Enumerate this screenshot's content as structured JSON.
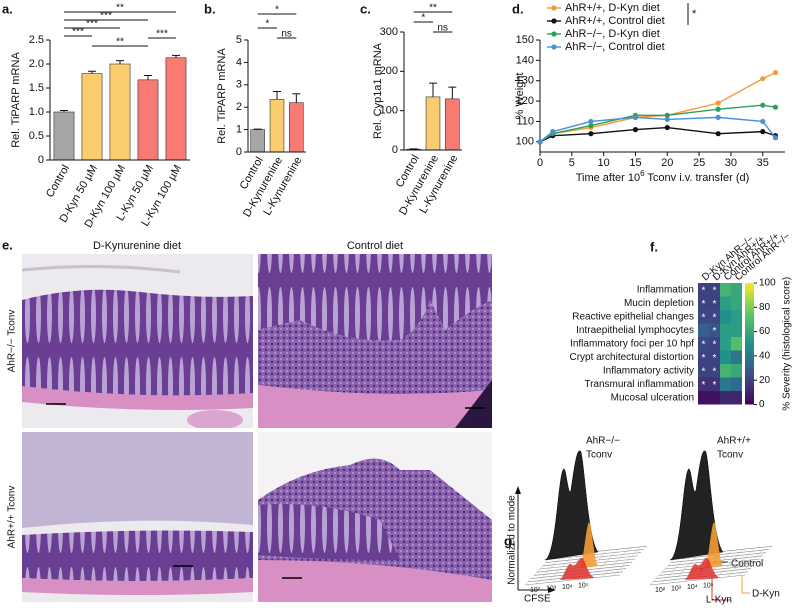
{
  "panel_labels": [
    "a.",
    "b.",
    "c.",
    "d.",
    "e.",
    "f.",
    "g."
  ],
  "chart_data": [
    {
      "type": "bar",
      "ylabel": "Rel. TiPARP mRNA",
      "categories": [
        "Control",
        "D-Kyn 50 µM",
        "D-Kyn 100 µM",
        "L-Kyn 50 µM",
        "L-Kyn 100 µM"
      ],
      "values": [
        1,
        1.8,
        2.0,
        1.67,
        2.13
      ],
      "errors": [
        0.03,
        0.05,
        0.07,
        0.09,
        0.05
      ],
      "colors": [
        "#a6a6a6",
        "#f9cd6e",
        "#f9cd6e",
        "#f77b72",
        "#f77b72"
      ],
      "ylim": [
        0,
        2.5
      ],
      "yticks": [
        0,
        0.5,
        {
          "value": 1,
          "label": "1.0"
        },
        1.5,
        {
          "value": 2,
          "label": "2.0"
        },
        2.5
      ],
      "annotations": [
        "**",
        "***",
        "***",
        "***",
        "**",
        "***"
      ]
    },
    {
      "type": "bar",
      "ylabel": "Rel. TiPARP mRNA",
      "categories": [
        "Control",
        "D-Kynurenine",
        "L-Kynurenine"
      ],
      "values": [
        1,
        2.35,
        2.2
      ],
      "errors": [
        0.02,
        0.35,
        0.4
      ],
      "colors": [
        "#a6a6a6",
        "#f9cd6e",
        "#f77b72"
      ],
      "ylim": [
        0,
        5
      ],
      "yticks": [
        0,
        1,
        2,
        3,
        4,
        5
      ],
      "annotations": [
        "*",
        "*",
        "ns"
      ]
    },
    {
      "type": "bar",
      "ylabel": "Rel. Cyp1a1 mRNA",
      "categories": [
        "Control",
        "D-Kynurenine",
        "L-Kynurenine"
      ],
      "values": [
        2,
        135,
        130
      ],
      "errors": [
        1,
        35,
        30
      ],
      "colors": [
        "#a6a6a6",
        "#f9cd6e",
        "#f77b72"
      ],
      "ylim": [
        0,
        300
      ],
      "yticks": [
        0,
        100,
        200,
        300
      ],
      "annotations": [
        "**",
        "*",
        "ns"
      ]
    },
    {
      "type": "line",
      "ylabel": "% Weight",
      "xlabel": [
        "Time after 10",
        "6",
        " Tconv i.v. transfer (d)"
      ],
      "x": [
        0,
        2,
        8,
        15,
        20,
        28,
        35,
        37
      ],
      "series": [
        {
          "name": "AhR+/+, D-Kyn diet",
          "color": "#f39c34",
          "values": [
            100,
            104,
            107,
            112,
            113,
            119,
            131,
            134
          ]
        },
        {
          "name": "AhR+/+, Control diet",
          "color": "#111111",
          "values": [
            100,
            103,
            104,
            106,
            107,
            104,
            105,
            103
          ]
        },
        {
          "name": "AhR−/−, D-Kyn diet",
          "color": "#2ca05a",
          "values": [
            100,
            104,
            108,
            113,
            113,
            116,
            118,
            117
          ]
        },
        {
          "name": "AhR−/−, Control diet",
          "color": "#4a90d9",
          "values": [
            100,
            105,
            110,
            112,
            111,
            112,
            110,
            102
          ]
        }
      ],
      "xlim": [
        0,
        38.5
      ],
      "xticks": [
        0,
        5,
        10,
        15,
        20,
        25,
        30,
        35
      ],
      "ylim": [
        95,
        150
      ],
      "yticks": [
        100,
        110,
        120,
        130,
        140,
        150
      ],
      "annotations": [
        "*"
      ]
    },
    {
      "type": "heatmap",
      "rows": [
        "Inflammation",
        "Mucin depletion",
        "Reactive epithelial changes",
        "Intraepithelial lymphocytes",
        "Inflammatory foci per 10 hpf",
        "Crypt architectural distortion",
        "Inflammatory activity",
        "Transmural inflammation",
        "Mucosal ulceration"
      ],
      "columns": [
        "D-Kyn AhR−/−",
        "D-Kyn AhR+/+",
        "Control AhR+/+",
        "Control AhR−/−"
      ],
      "values": [
        [
          20,
          20,
          65,
          60
        ],
        [
          20,
          20,
          55,
          60
        ],
        [
          22,
          22,
          50,
          55
        ],
        [
          30,
          25,
          55,
          55
        ],
        [
          22,
          20,
          55,
          70
        ],
        [
          20,
          20,
          50,
          40
        ],
        [
          20,
          20,
          65,
          60
        ],
        [
          15,
          15,
          40,
          35
        ],
        [
          5,
          5,
          12,
          12
        ]
      ],
      "stars": [
        [
          "*",
          "*",
          null,
          null
        ],
        [
          "*",
          "*",
          null,
          null
        ],
        [
          "*",
          "*",
          null,
          null
        ],
        [
          null,
          "*",
          null,
          null
        ],
        [
          "*",
          "*",
          null,
          null
        ],
        [
          "*",
          "*",
          null,
          null
        ],
        [
          "*",
          "*",
          null,
          null
        ],
        [
          "*",
          "*",
          null,
          null
        ],
        [
          null,
          null,
          null,
          null
        ]
      ],
      "clim": [
        0,
        100
      ],
      "cticks": [
        0,
        20,
        40,
        60,
        80,
        100
      ],
      "clabel": "% Severity (histological score)"
    }
  ],
  "panel_e": {
    "columns": [
      "D-Kynurenine diet",
      "Control diet"
    ],
    "rows": [
      "AhR−/− Tconv",
      "AhR+/+ Tconv"
    ]
  },
  "panel_g": {
    "titles": [
      [
        "AhR−/−",
        "Tconv"
      ],
      [
        "AhR+/+",
        "Tconv"
      ]
    ],
    "ylabel": "Normalized to mode",
    "xlabel": "CFSE",
    "xticks": [
      "10²",
      "10³",
      "10⁴",
      "10⁵"
    ],
    "legend": [
      "Control",
      "L-Kyn",
      "D-Kyn"
    ]
  }
}
